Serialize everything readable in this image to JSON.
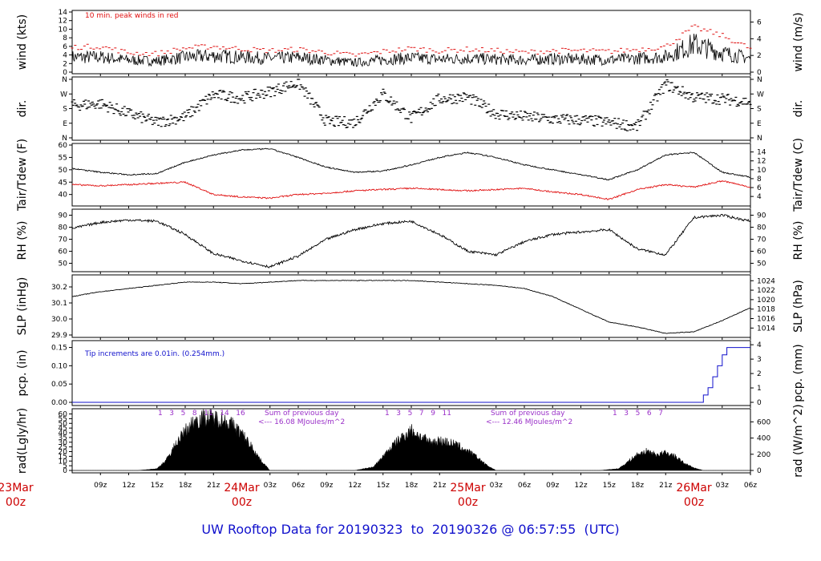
{
  "title": "UW Rooftop Data for 20190323  to  20190326 @ 06:57:55  (UTC)",
  "colors": {
    "series": "#000000",
    "peak": "#e01010",
    "dew": "#e01010",
    "note_blue": "#1010cc",
    "note_purple": "#9a30c8",
    "date_label": "#cc0000",
    "title": "#1010cc"
  },
  "time_axis": {
    "start_hour": 6,
    "end_hour": 78,
    "ticks": [
      {
        "hour": 9,
        "label": "09z"
      },
      {
        "hour": 12,
        "label": "12z"
      },
      {
        "hour": 15,
        "label": "15z"
      },
      {
        "hour": 18,
        "label": "18z"
      },
      {
        "hour": 21,
        "label": "21z"
      },
      {
        "hour": 27,
        "label": "03z"
      },
      {
        "hour": 30,
        "label": "06z"
      },
      {
        "hour": 33,
        "label": "09z"
      },
      {
        "hour": 36,
        "label": "12z"
      },
      {
        "hour": 39,
        "label": "15z"
      },
      {
        "hour": 42,
        "label": "18z"
      },
      {
        "hour": 45,
        "label": "21z"
      },
      {
        "hour": 51,
        "label": "03z"
      },
      {
        "hour": 54,
        "label": "06z"
      },
      {
        "hour": 57,
        "label": "09z"
      },
      {
        "hour": 60,
        "label": "12z"
      },
      {
        "hour": 63,
        "label": "15z"
      },
      {
        "hour": 66,
        "label": "18z"
      },
      {
        "hour": 69,
        "label": "21z"
      },
      {
        "hour": 75,
        "label": "03z"
      },
      {
        "hour": 78,
        "label": "06z"
      }
    ],
    "date_labels": [
      {
        "hour": 0,
        "date": "23Mar",
        "time": "00z"
      },
      {
        "hour": 24,
        "date": "24Mar",
        "time": "00z"
      },
      {
        "hour": 48,
        "date": "25Mar",
        "time": "00z"
      },
      {
        "hour": 72,
        "date": "26Mar",
        "time": "00z"
      }
    ]
  },
  "panels": {
    "wind": {
      "ylabel": "wind (kts)",
      "ylabel_right": "wind (m/s)",
      "ylim": [
        0,
        14
      ],
      "left_ticks": [
        "0",
        "2",
        "4",
        "6",
        "8",
        "10",
        "12",
        "14"
      ],
      "right_ticks": [
        "0",
        "2",
        "4",
        "6"
      ],
      "note": "10 min. peak winds in red"
    },
    "dir": {
      "ylabel": "dir.",
      "ylabel_right": "dir.",
      "ticks": [
        "N",
        "E",
        "S",
        "W",
        "N"
      ]
    },
    "temp": {
      "ylabel": "Tair/Tdew (F)",
      "ylabel_right": "Tair/Tdew (C)",
      "ylim": [
        36,
        60
      ],
      "left_ticks": [
        "40",
        "45",
        "50",
        "55",
        "60"
      ],
      "right_ticks": [
        "4",
        "6",
        "8",
        "10",
        "12",
        "14"
      ]
    },
    "rh": {
      "ylabel": "RH (%)",
      "ylabel_right": "RH (%)",
      "ylim": [
        45,
        93
      ],
      "ticks": [
        "50",
        "60",
        "70",
        "80",
        "90"
      ]
    },
    "slp": {
      "ylabel": "SLP (inHg)",
      "ylabel_right": "SLP (hPa)",
      "ylim": [
        29.9,
        30.26
      ],
      "left_ticks": [
        "29.9",
        "30.0",
        "30.1",
        "30.2"
      ],
      "right_ticks": [
        "1014",
        "1016",
        "1018",
        "1020",
        "1022",
        "1024"
      ]
    },
    "pcp": {
      "ylabel": "pcp. (in)",
      "ylabel_right": "pcp. (mm)",
      "ylim": [
        0,
        0.16
      ],
      "left_ticks": [
        "0.00",
        "0.05",
        "0.10",
        "0.15"
      ],
      "right_ticks": [
        "0",
        "1",
        "2",
        "3",
        "4"
      ],
      "note": "Tip increments are 0.01in. (0.254mm.)"
    },
    "rad": {
      "ylabel": "rad(Lgly/hr)",
      "ylabel_right": "rad (W/m^2)",
      "ylim": [
        0,
        63
      ],
      "left_ticks": [
        "0",
        "5",
        "10",
        "15",
        "20",
        "25",
        "30",
        "35",
        "40",
        "45",
        "50",
        "55",
        "60"
      ],
      "right_ticks": [
        "0",
        "200",
        "400",
        "600"
      ],
      "hour_marks_day1": "1   3   5   8   11   14   16",
      "hour_marks_day2": "1   3   5   7   9   11",
      "hour_marks_day3": "1   3   5   6   7",
      "sum_day1_line1": "Sum of previous day",
      "sum_day1_line2": "<--- 16.08 MJoules/m^2",
      "sum_day2_line1": "Sum of previous day",
      "sum_day2_line2": "<--- 12.46 MJoules/m^2"
    }
  },
  "chart_data": {
    "type": "line",
    "title": "UW Rooftop Data for 20190323  to  20190326 @ 06:57:55  (UTC)",
    "x_unit": "hours since 23Mar 00z",
    "x_range": [
      6,
      78
    ],
    "series": [
      {
        "name": "wind",
        "x": [
          6,
          9,
          12,
          15,
          18,
          21,
          24,
          27,
          30,
          33,
          36,
          39,
          42,
          45,
          48,
          51,
          54,
          57,
          60,
          63,
          66,
          69,
          72,
          75,
          78
        ],
        "values": [
          3.5,
          3.5,
          2.8,
          2.6,
          3.5,
          3.8,
          3.5,
          3.2,
          3.4,
          2.8,
          2.2,
          2.9,
          3.3,
          3.0,
          3.2,
          3.0,
          2.8,
          3.1,
          3.0,
          2.9,
          3.2,
          3.6,
          6.5,
          4.5,
          3.2
        ]
      },
      {
        "name": "wind_peak",
        "x": [
          6,
          9,
          12,
          15,
          18,
          21,
          24,
          27,
          30,
          33,
          36,
          39,
          42,
          45,
          48,
          51,
          54,
          57,
          60,
          63,
          66,
          69,
          72,
          75,
          78
        ],
        "values": [
          5.8,
          6.0,
          4.5,
          4.3,
          5.6,
          6.0,
          5.4,
          5.0,
          5.3,
          4.6,
          3.9,
          4.8,
          5.5,
          5.0,
          5.3,
          5.0,
          4.6,
          5.0,
          5.0,
          4.8,
          5.3,
          5.9,
          10.5,
          8.5,
          5.5
        ]
      },
      {
        "name": "direction",
        "x": [
          6,
          9,
          12,
          15,
          18,
          21,
          24,
          27,
          30,
          33,
          36,
          39,
          42,
          45,
          48,
          51,
          54,
          57,
          60,
          63,
          66,
          69,
          72,
          75,
          78
        ],
        "values": [
          200,
          210,
          150,
          95,
          130,
          265,
          245,
          285,
          340,
          100,
          95,
          270,
          120,
          240,
          250,
          150,
          130,
          115,
          110,
          95,
          70,
          330,
          250,
          240,
          220
        ]
      },
      {
        "name": "Tair",
        "x": [
          6,
          9,
          12,
          15,
          18,
          21,
          24,
          27,
          30,
          33,
          36,
          39,
          42,
          45,
          48,
          51,
          54,
          57,
          60,
          63,
          66,
          69,
          72,
          75,
          78
        ],
        "values": [
          50.5,
          49,
          48,
          48.5,
          53,
          56,
          58,
          58.5,
          55,
          51,
          49,
          49.5,
          52,
          55,
          57,
          55,
          52,
          50,
          48,
          46,
          50,
          56,
          57,
          49,
          47
        ]
      },
      {
        "name": "Tdew",
        "x": [
          6,
          9,
          12,
          15,
          18,
          21,
          24,
          27,
          30,
          33,
          36,
          39,
          42,
          45,
          48,
          51,
          54,
          57,
          60,
          63,
          66,
          69,
          72,
          75,
          78
        ],
        "values": [
          44,
          43.5,
          44,
          44.5,
          45,
          40,
          39,
          38.5,
          40,
          40.5,
          41.5,
          42,
          42.5,
          42,
          41.5,
          42,
          42.5,
          41,
          40,
          38,
          42,
          44,
          43,
          45.5,
          43
        ]
      },
      {
        "name": "RH",
        "x": [
          6,
          9,
          12,
          15,
          18,
          21,
          24,
          27,
          30,
          33,
          36,
          39,
          42,
          45,
          48,
          51,
          54,
          57,
          60,
          63,
          66,
          69,
          72,
          75,
          78
        ],
        "values": [
          79,
          84,
          86,
          85,
          74,
          58,
          52,
          47,
          56,
          70,
          78,
          83,
          85,
          74,
          60,
          57,
          68,
          74,
          76,
          78,
          62,
          57,
          88,
          90,
          85
        ]
      },
      {
        "name": "SLP",
        "x": [
          6,
          9,
          12,
          15,
          18,
          21,
          24,
          27,
          30,
          33,
          36,
          39,
          42,
          45,
          48,
          51,
          54,
          57,
          60,
          63,
          66,
          69,
          72,
          75,
          78
        ],
        "values": [
          30.14,
          30.17,
          30.19,
          30.21,
          30.23,
          30.23,
          30.22,
          30.23,
          30.24,
          30.24,
          30.24,
          30.24,
          30.24,
          30.23,
          30.22,
          30.21,
          30.19,
          30.14,
          30.06,
          29.98,
          29.95,
          29.91,
          29.92,
          29.99,
          30.07
        ]
      },
      {
        "name": "pcp",
        "x": [
          6,
          12,
          24,
          36,
          48,
          60,
          72,
          73,
          73.5,
          74,
          74.5,
          75,
          75.5,
          78
        ],
        "values": [
          0,
          0,
          0,
          0,
          0,
          0,
          0,
          0.02,
          0.04,
          0.07,
          0.1,
          0.13,
          0.15,
          0.15
        ]
      },
      {
        "name": "rad",
        "x": [
          6,
          13,
          15,
          16,
          17,
          18,
          19,
          20,
          21,
          22,
          23,
          24,
          25,
          26,
          27,
          36,
          38,
          39,
          40,
          41,
          42,
          43,
          44,
          45,
          46,
          47,
          48,
          49,
          50,
          51,
          52,
          62,
          64,
          65,
          66,
          67,
          68,
          69,
          70,
          71,
          72,
          73,
          78
        ],
        "values": [
          0,
          0,
          2,
          12,
          30,
          45,
          57,
          60,
          60,
          58,
          52,
          42,
          28,
          12,
          0,
          0,
          4,
          16,
          28,
          38,
          46,
          38,
          32,
          34,
          32,
          28,
          22,
          15,
          6,
          0,
          0,
          0,
          2,
          10,
          18,
          22,
          18,
          20,
          16,
          8,
          3,
          0,
          0
        ]
      }
    ]
  }
}
